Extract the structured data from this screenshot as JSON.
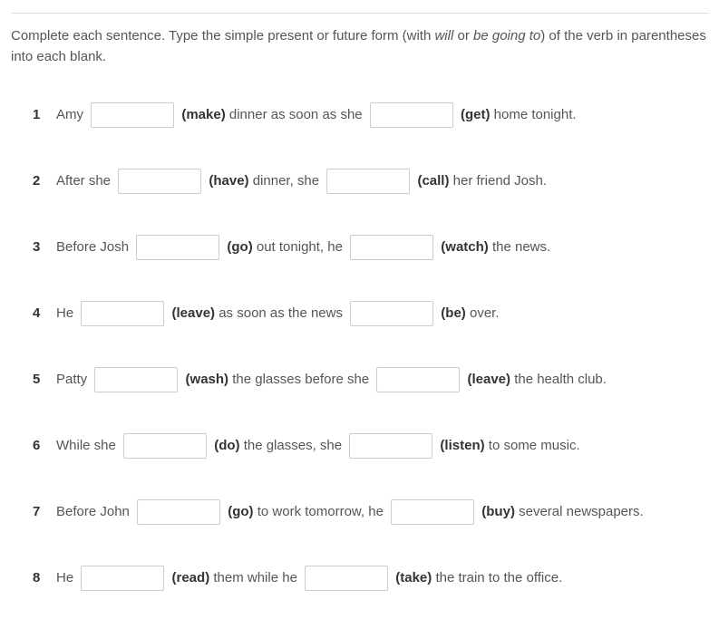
{
  "instructions": {
    "pre": "Complete each sentence. Type the simple present or future form (with ",
    "italic1": "will",
    "mid": " or ",
    "italic2": "be going to",
    "post": ") of the verb in parentheses into each blank."
  },
  "items": [
    {
      "num": "1",
      "parts": [
        {
          "type": "text",
          "value": "Amy "
        },
        {
          "type": "input"
        },
        {
          "type": "verb",
          "value": " (make) "
        },
        {
          "type": "text",
          "value": "dinner as soon as she "
        },
        {
          "type": "input"
        },
        {
          "type": "verb",
          "value": " (get) "
        },
        {
          "type": "text",
          "value": "home tonight."
        }
      ]
    },
    {
      "num": "2",
      "parts": [
        {
          "type": "text",
          "value": "After she "
        },
        {
          "type": "input"
        },
        {
          "type": "verb",
          "value": " (have) "
        },
        {
          "type": "text",
          "value": "dinner, she "
        },
        {
          "type": "input"
        },
        {
          "type": "verb",
          "value": " (call) "
        },
        {
          "type": "text",
          "value": "her friend Josh."
        }
      ]
    },
    {
      "num": "3",
      "parts": [
        {
          "type": "text",
          "value": "Before Josh "
        },
        {
          "type": "input"
        },
        {
          "type": "verb",
          "value": " (go) "
        },
        {
          "type": "text",
          "value": "out tonight, he "
        },
        {
          "type": "input"
        },
        {
          "type": "verb",
          "value": " (watch) "
        },
        {
          "type": "text",
          "value": "the news."
        }
      ]
    },
    {
      "num": "4",
      "parts": [
        {
          "type": "text",
          "value": "He "
        },
        {
          "type": "input"
        },
        {
          "type": "verb",
          "value": " (leave) "
        },
        {
          "type": "text",
          "value": "as soon as the news "
        },
        {
          "type": "input"
        },
        {
          "type": "verb",
          "value": " (be) "
        },
        {
          "type": "text",
          "value": "over."
        }
      ]
    },
    {
      "num": "5",
      "parts": [
        {
          "type": "text",
          "value": "Patty "
        },
        {
          "type": "input"
        },
        {
          "type": "verb",
          "value": " (wash) "
        },
        {
          "type": "text",
          "value": "the glasses before she "
        },
        {
          "type": "input"
        },
        {
          "type": "verb",
          "value": " (leave) "
        },
        {
          "type": "text",
          "value": "the health club."
        }
      ]
    },
    {
      "num": "6",
      "parts": [
        {
          "type": "text",
          "value": "While she "
        },
        {
          "type": "input"
        },
        {
          "type": "verb",
          "value": " (do) "
        },
        {
          "type": "text",
          "value": "the glasses, she "
        },
        {
          "type": "input"
        },
        {
          "type": "verb",
          "value": " (listen) "
        },
        {
          "type": "text",
          "value": "to some music."
        }
      ]
    },
    {
      "num": "7",
      "parts": [
        {
          "type": "text",
          "value": "Before John "
        },
        {
          "type": "input"
        },
        {
          "type": "verb",
          "value": " (go) "
        },
        {
          "type": "text",
          "value": "to work tomorrow, he "
        },
        {
          "type": "input"
        },
        {
          "type": "verb",
          "value": " (buy) "
        },
        {
          "type": "text",
          "value": "several newspapers."
        }
      ]
    },
    {
      "num": "8",
      "parts": [
        {
          "type": "text",
          "value": "He "
        },
        {
          "type": "input"
        },
        {
          "type": "verb",
          "value": " (read) "
        },
        {
          "type": "text",
          "value": "them while he "
        },
        {
          "type": "input"
        },
        {
          "type": "verb",
          "value": " (take) "
        },
        {
          "type": "text",
          "value": "the train to the office."
        }
      ]
    }
  ]
}
